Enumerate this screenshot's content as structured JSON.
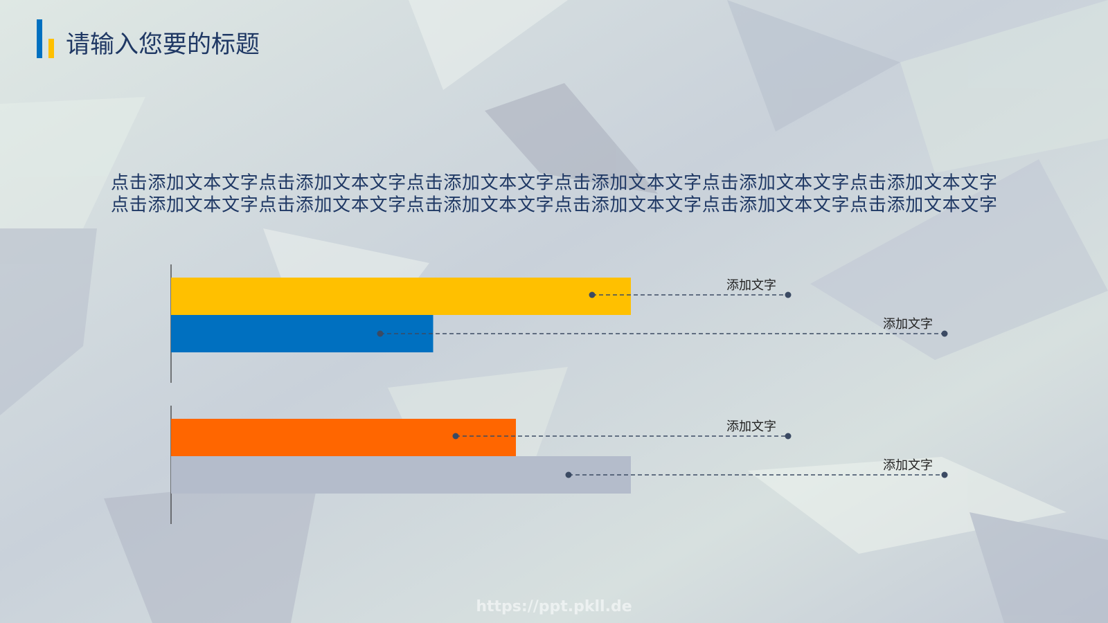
{
  "header": {
    "title": "请输入您要的标题"
  },
  "body": [
    "点击添加文本文字点击添加文本文字点击添加文本文字点击添加文本文字点击添加文本文字点击添加文本文字",
    "点击添加文本文字点击添加文本文字点击添加文本文字点击添加文本文字点击添加文本文字点击添加文本文字"
  ],
  "chart_data": {
    "type": "bar",
    "categories": [
      "添加文字",
      "添加文字",
      "添加文字",
      "添加文字"
    ],
    "values": [
      100,
      57,
      75,
      100
    ],
    "colors": [
      "#ffc000",
      "#0070c0",
      "#ff6600",
      "#b4bccb"
    ]
  },
  "watermark": "https://ppt.pkll.de"
}
